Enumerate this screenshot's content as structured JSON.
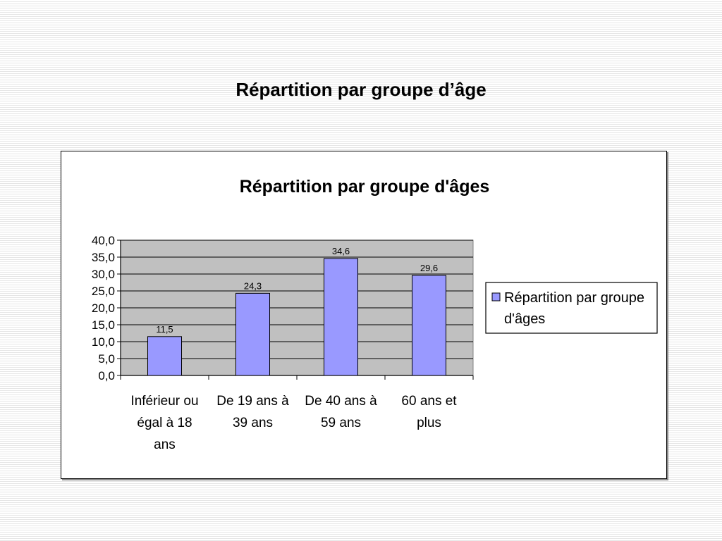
{
  "slide": {
    "title": "Répartition par groupe d’âge"
  },
  "chart_data": {
    "type": "bar",
    "title": "Répartition par groupe d'âges",
    "categories": [
      [
        "Inférieur ou",
        "égal à 18",
        "ans"
      ],
      [
        "De 19 ans à",
        "39 ans"
      ],
      [
        "De 40 ans à",
        "59 ans"
      ],
      [
        "60 ans et",
        "plus"
      ]
    ],
    "series": [
      {
        "name": "Répartition par groupe d'âges",
        "name_lines": [
          "Répartition par groupe",
          "d'âges"
        ],
        "values": [
          11.5,
          24.3,
          34.6,
          29.6
        ],
        "labels": [
          "11,5",
          "24,3",
          "34,6",
          "29,6"
        ]
      }
    ],
    "ylim": [
      0,
      40
    ],
    "yticks": [
      0,
      5,
      10,
      15,
      20,
      25,
      30,
      35,
      40
    ],
    "ytick_labels": [
      "0,0",
      "5,0",
      "10,0",
      "15,0",
      "20,0",
      "25,0",
      "30,0",
      "35,0",
      "40,0"
    ],
    "xlabel": "",
    "ylabel": "",
    "grid": true,
    "legend": "right",
    "colors": {
      "bar": "#9999ff",
      "plot_background": "#c0c0c0",
      "gridline": "#000000"
    }
  }
}
